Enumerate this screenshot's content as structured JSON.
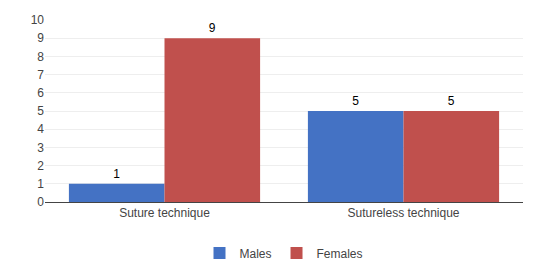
{
  "chart_data": {
    "type": "bar",
    "categories": [
      "Suture technique",
      "Sutureless technique"
    ],
    "series": [
      {
        "name": "Males",
        "color": "#4472c4",
        "values": [
          1,
          5
        ]
      },
      {
        "name": "Females",
        "color": "#c0504d",
        "values": [
          9,
          5
        ]
      }
    ],
    "ylim": [
      0,
      10
    ],
    "yticks": [
      0,
      1,
      2,
      3,
      4,
      5,
      6,
      7,
      8,
      9,
      10
    ],
    "grid": true,
    "legend": "bottom",
    "data_labels": true
  }
}
